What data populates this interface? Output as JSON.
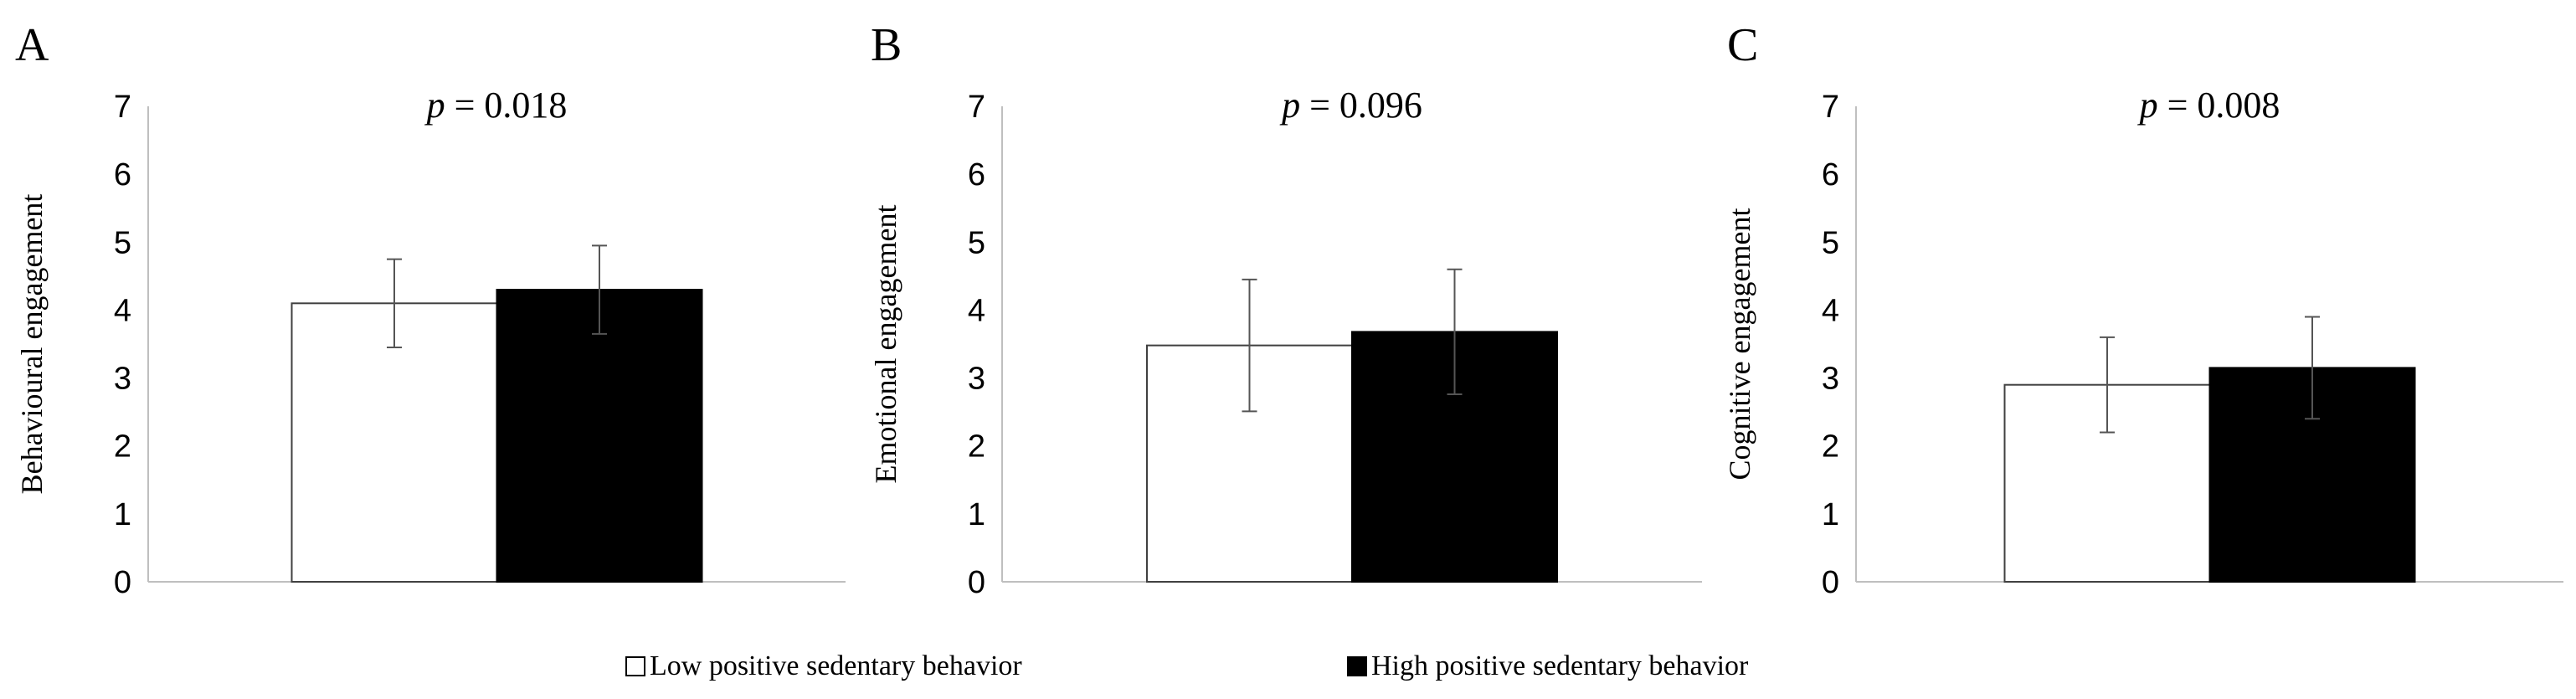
{
  "figure": {
    "panels": [
      "A",
      "B",
      "C"
    ],
    "legend": [
      {
        "label": "Low positive sedentary behavior",
        "color": "#ffffff"
      },
      {
        "label": "High positive sedentary behavior",
        "color": "#000000"
      }
    ]
  },
  "colors": {
    "low": "#ffffff",
    "high": "#000000",
    "axis": "#bfbfbf",
    "bar_outline": "#404040",
    "text": "#000000"
  },
  "chart_data": [
    {
      "type": "bar",
      "panel": "A",
      "title": "",
      "annotation_prefix": "p",
      "annotation_value": "= 0.018",
      "ylabel": "Behavioural engagement",
      "xlabel": "",
      "ylim": [
        0,
        7
      ],
      "yticks": [
        0,
        1,
        2,
        3,
        4,
        5,
        6,
        7
      ],
      "categories": [
        ""
      ],
      "series": [
        {
          "name": "Low positive sedentary behavior",
          "values": [
            4.1
          ],
          "error": [
            0.65
          ]
        },
        {
          "name": "High positive sedentary behavior",
          "values": [
            4.3
          ],
          "error": [
            0.65
          ]
        }
      ]
    },
    {
      "type": "bar",
      "panel": "B",
      "title": "",
      "annotation_prefix": "p",
      "annotation_value": "= 0.096",
      "ylabel": "Emotional engagement",
      "xlabel": "",
      "ylim": [
        0,
        7
      ],
      "yticks": [
        0,
        1,
        2,
        3,
        4,
        5,
        6,
        7
      ],
      "categories": [
        ""
      ],
      "series": [
        {
          "name": "Low positive sedentary behavior",
          "values": [
            3.48
          ],
          "error": [
            0.97
          ]
        },
        {
          "name": "High positive sedentary behavior",
          "values": [
            3.68
          ],
          "error": [
            0.92
          ]
        }
      ]
    },
    {
      "type": "bar",
      "panel": "C",
      "title": "",
      "annotation_prefix": "p",
      "annotation_value": "= 0.008",
      "ylabel": "Cognitive engagement",
      "xlabel": "",
      "ylim": [
        0,
        7
      ],
      "yticks": [
        0,
        1,
        2,
        3,
        4,
        5,
        6,
        7
      ],
      "categories": [
        ""
      ],
      "series": [
        {
          "name": "Low positive sedentary behavior",
          "values": [
            2.9
          ],
          "error": [
            0.7
          ]
        },
        {
          "name": "High positive sedentary behavior",
          "values": [
            3.15
          ],
          "error": [
            0.75
          ]
        }
      ]
    }
  ]
}
